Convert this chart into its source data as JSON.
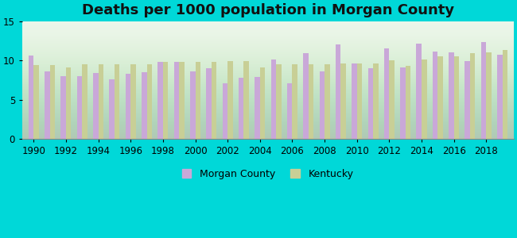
{
  "title": "Deaths per 1000 population in Morgan County",
  "background_color": "#00d8d8",
  "morgan_county_color": "#c9a8d8",
  "kentucky_color": "#c8cf96",
  "years": [
    1990,
    1991,
    1992,
    1993,
    1994,
    1995,
    1996,
    1997,
    1998,
    1999,
    2000,
    2001,
    2002,
    2003,
    2004,
    2005,
    2006,
    2007,
    2008,
    2009,
    2010,
    2011,
    2012,
    2013,
    2014,
    2015,
    2016,
    2017,
    2018,
    2019
  ],
  "morgan_county": [
    10.6,
    8.6,
    8.0,
    8.0,
    8.4,
    7.6,
    8.3,
    8.5,
    9.8,
    9.8,
    8.6,
    9.0,
    7.1,
    7.8,
    7.9,
    10.1,
    7.1,
    10.9,
    8.6,
    12.0,
    9.6,
    9.0,
    11.5,
    9.1,
    12.1,
    11.1,
    11.0,
    9.9,
    12.3,
    10.7
  ],
  "kentucky": [
    9.4,
    9.4,
    9.1,
    9.5,
    9.5,
    9.5,
    9.5,
    9.5,
    9.8,
    9.8,
    9.8,
    9.8,
    9.9,
    9.9,
    9.1,
    9.5,
    9.5,
    9.5,
    9.5,
    9.6,
    9.6,
    9.6,
    10.0,
    9.3,
    10.1,
    10.5,
    10.5,
    10.9,
    11.0,
    11.3
  ],
  "ylim": [
    0,
    15
  ],
  "yticks": [
    0,
    5,
    10,
    15
  ],
  "legend_labels": [
    "Morgan County",
    "Kentucky"
  ],
  "title_fontsize": 13,
  "tick_fontsize": 8.5
}
